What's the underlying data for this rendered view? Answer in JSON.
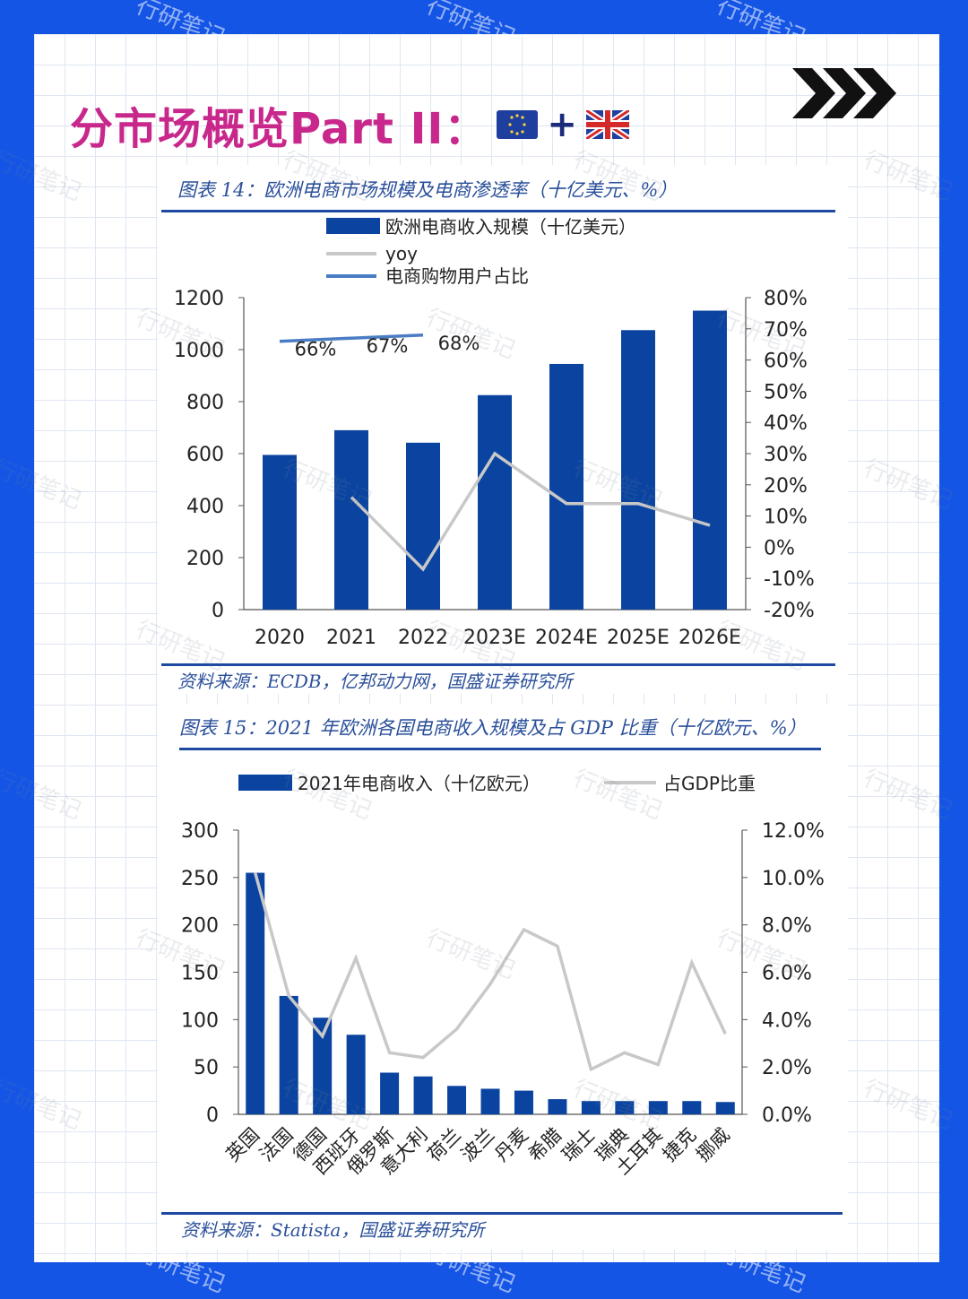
{
  "headline": "分市场概览Part II：",
  "headline_plus": "+",
  "flags": [
    "eu-flag-icon",
    "uk-flag-icon"
  ],
  "watermark": "行研笔记",
  "colors": {
    "background": "#1455e6",
    "accent": "#c8288c",
    "bar": "#0b44a0",
    "line_gray": "#c8c8c8",
    "line_blue": "#4a7cc4",
    "rule": "#1d4aa0"
  },
  "chart_data": [
    {
      "type": "bar",
      "title": "图表 14：欧洲电商市场规模及电商渗透率（十亿美元、%）",
      "categories": [
        "2020",
        "2021",
        "2022",
        "2023E",
        "2024E",
        "2025E",
        "2026E"
      ],
      "series": [
        {
          "name": "欧洲电商收入规模（十亿美元）",
          "type": "bar",
          "axis": "left",
          "values": [
            595,
            690,
            642,
            825,
            945,
            1075,
            1150
          ]
        },
        {
          "name": "yoy",
          "type": "line",
          "axis": "right",
          "values": [
            null,
            16,
            -7,
            30,
            14,
            14,
            7
          ]
        },
        {
          "name": "电商购物用户占比",
          "type": "line",
          "axis": "right",
          "values": [
            66,
            67,
            68,
            null,
            null,
            null,
            null
          ]
        }
      ],
      "data_labels": [
        "66%",
        "67%",
        "68%"
      ],
      "y_left": {
        "ticks": [
          "0",
          "200",
          "400",
          "600",
          "800",
          "1000",
          "1200"
        ],
        "lim": [
          0,
          1200
        ]
      },
      "y_right": {
        "ticks": [
          "-20%",
          "-10%",
          "0%",
          "10%",
          "20%",
          "30%",
          "40%",
          "50%",
          "60%",
          "70%",
          "80%"
        ],
        "lim": [
          -20,
          80
        ]
      },
      "legend": "top-left",
      "source": "资料来源：ECDB，亿邦动力网，国盛证券研究所"
    },
    {
      "type": "bar",
      "title": "图表 15：2021 年欧洲各国电商收入规模及占 GDP 比重（十亿欧元、%）",
      "categories": [
        "英国",
        "法国",
        "德国",
        "西班牙",
        "俄罗斯",
        "意大利",
        "荷兰",
        "波兰",
        "丹麦",
        "希腊",
        "瑞士",
        "瑞典",
        "土耳其",
        "捷克",
        "挪威"
      ],
      "series": [
        {
          "name": "2021年电商收入（十亿欧元）",
          "type": "bar",
          "axis": "left",
          "values": [
            255,
            125,
            102,
            84,
            44,
            40,
            30,
            27,
            25,
            16,
            14,
            14,
            14,
            14,
            13
          ]
        },
        {
          "name": "占GDP比重",
          "type": "line",
          "axis": "right",
          "values": [
            10.2,
            5.0,
            3.3,
            6.6,
            2.6,
            2.4,
            3.6,
            5.5,
            7.8,
            7.1,
            1.9,
            2.6,
            2.1,
            6.4,
            3.4
          ]
        }
      ],
      "y_left": {
        "ticks": [
          "0",
          "50",
          "100",
          "150",
          "200",
          "250",
          "300"
        ],
        "lim": [
          0,
          300
        ]
      },
      "y_right": {
        "ticks": [
          "0.0%",
          "2.0%",
          "4.0%",
          "6.0%",
          "8.0%",
          "10.0%",
          "12.0%"
        ],
        "lim": [
          0,
          12
        ]
      },
      "legend": "top",
      "source": "资料来源：Statista，国盛证券研究所"
    }
  ]
}
